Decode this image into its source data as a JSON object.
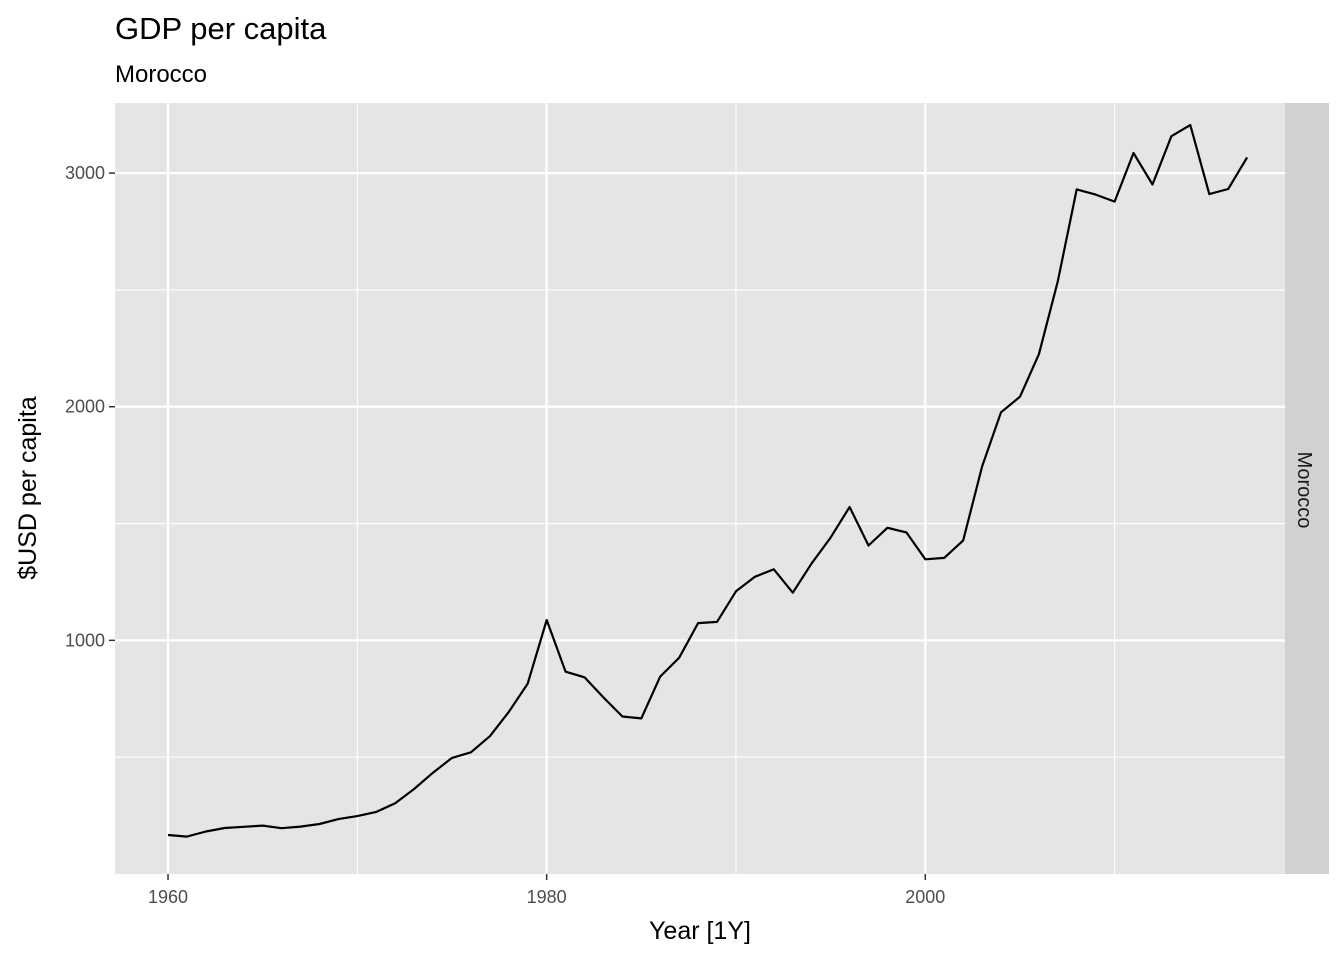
{
  "chart_data": {
    "type": "line",
    "title": "GDP per capita",
    "subtitle": "Morocco",
    "xlabel": "Year [1Y]",
    "ylabel": "$USD per capita",
    "facet_label": "Morocco",
    "xlim": [
      1957.2,
      2019
    ],
    "ylim": [
      0,
      3300
    ],
    "x_ticks": [
      1960,
      1980,
      2000
    ],
    "x_tick_labels": [
      "1960",
      "1980",
      "2000"
    ],
    "x_minor_ticks": [
      1970,
      1990,
      2010
    ],
    "y_ticks": [
      1000,
      2000,
      3000
    ],
    "y_tick_labels": [
      "1000",
      "2000",
      "3000"
    ],
    "y_minor_ticks": [
      500,
      1500,
      2500
    ],
    "grid": true,
    "legend": "none",
    "colors": {
      "panel": "#e5e5e5",
      "grid": "#ffffff",
      "line": "#000000",
      "strip": "#d1d1d1"
    },
    "series": [
      {
        "x": [
          1960,
          1961,
          1962,
          1963,
          1964,
          1965,
          1966,
          1967,
          1968,
          1969,
          1970,
          1971,
          1972,
          1973,
          1974,
          1975,
          1976,
          1977,
          1978,
          1979,
          1980,
          1981,
          1982,
          1983,
          1984,
          1985,
          1986,
          1987,
          1988,
          1989,
          1990,
          1991,
          1992,
          1993,
          1994,
          1995,
          1996,
          1997,
          1998,
          1999,
          2000,
          2001,
          2002,
          2003,
          2004,
          2005,
          2006,
          2007,
          2008,
          2009,
          2010,
          2011,
          2012,
          2013,
          2014,
          2015,
          2016,
          2017
        ],
        "values": [
          167,
          160,
          182,
          197,
          202,
          207,
          196,
          203,
          214,
          235,
          248,
          266,
          303,
          364,
          434,
          497,
          521,
          590,
          694,
          815,
          1087,
          866,
          842,
          756,
          674,
          666,
          845,
          926,
          1074,
          1079,
          1210,
          1272,
          1304,
          1204,
          1330,
          1440,
          1571,
          1406,
          1482,
          1462,
          1347,
          1353,
          1428,
          1744,
          1976,
          2043,
          2225,
          2537,
          2930,
          2908,
          2878,
          3086,
          2951,
          3158,
          3206,
          2910,
          2932,
          3067
        ]
      }
    ]
  }
}
